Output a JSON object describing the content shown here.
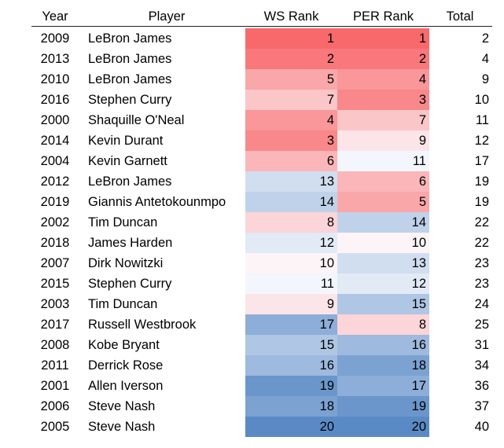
{
  "chart_data": {
    "type": "table",
    "columns": [
      "Year",
      "Player",
      "WS Rank",
      "PER Rank",
      "Total"
    ],
    "rows": [
      {
        "year": "2009",
        "player": "LeBron James",
        "ws": 1,
        "per": 1,
        "total": 2
      },
      {
        "year": "2013",
        "player": "LeBron James",
        "ws": 2,
        "per": 2,
        "total": 4
      },
      {
        "year": "2010",
        "player": "LeBron James",
        "ws": 5,
        "per": 4,
        "total": 9
      },
      {
        "year": "2016",
        "player": "Stephen Curry",
        "ws": 7,
        "per": 3,
        "total": 10
      },
      {
        "year": "2000",
        "player": "Shaquille O'Neal",
        "ws": 4,
        "per": 7,
        "total": 11
      },
      {
        "year": "2014",
        "player": "Kevin Durant",
        "ws": 3,
        "per": 9,
        "total": 12
      },
      {
        "year": "2004",
        "player": "Kevin Garnett",
        "ws": 6,
        "per": 11,
        "total": 17
      },
      {
        "year": "2012",
        "player": "LeBron James",
        "ws": 13,
        "per": 6,
        "total": 19
      },
      {
        "year": "2019",
        "player": "Giannis Antetokounmpo",
        "ws": 14,
        "per": 5,
        "total": 19
      },
      {
        "year": "2002",
        "player": "Tim Duncan",
        "ws": 8,
        "per": 14,
        "total": 22
      },
      {
        "year": "2018",
        "player": "James Harden",
        "ws": 12,
        "per": 10,
        "total": 22
      },
      {
        "year": "2007",
        "player": "Dirk Nowitzki",
        "ws": 10,
        "per": 13,
        "total": 23
      },
      {
        "year": "2015",
        "player": "Stephen Curry",
        "ws": 11,
        "per": 12,
        "total": 23
      },
      {
        "year": "2003",
        "player": "Tim Duncan",
        "ws": 9,
        "per": 15,
        "total": 24
      },
      {
        "year": "2017",
        "player": "Russell Westbrook",
        "ws": 17,
        "per": 8,
        "total": 25
      },
      {
        "year": "2008",
        "player": "Kobe Bryant",
        "ws": 15,
        "per": 16,
        "total": 31
      },
      {
        "year": "2011",
        "player": "Derrick Rose",
        "ws": 16,
        "per": 18,
        "total": 34
      },
      {
        "year": "2001",
        "player": "Allen Iverson",
        "ws": 19,
        "per": 17,
        "total": 36
      },
      {
        "year": "2006",
        "player": "Steve Nash",
        "ws": 18,
        "per": 19,
        "total": 37
      },
      {
        "year": "2005",
        "player": "Steve Nash",
        "ws": 20,
        "per": 20,
        "total": 40
      }
    ],
    "color_scale": {
      "low_color": "#f8696b",
      "mid_color": "#fcfcff",
      "high_color": "#5a8ac6",
      "min": 1,
      "max": 20
    }
  }
}
